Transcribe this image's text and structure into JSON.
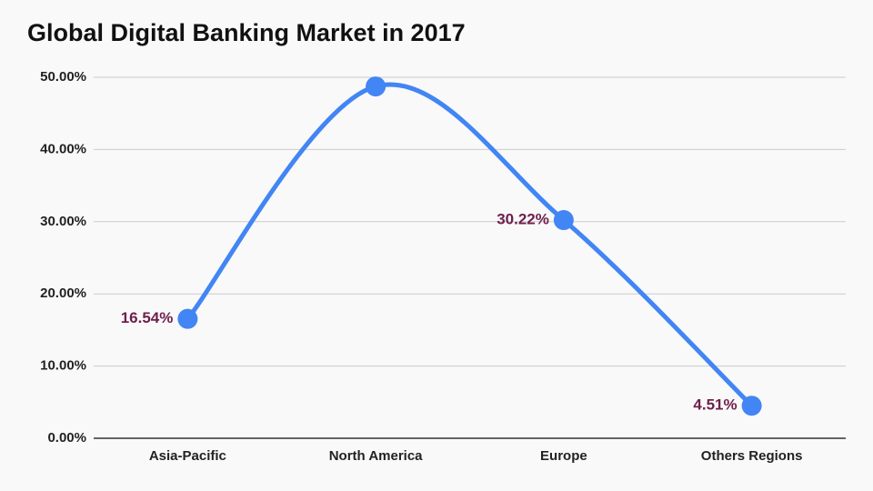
{
  "chart_data": {
    "type": "line",
    "title": "Global Digital Banking Market in 2017",
    "categories": [
      "Asia-Pacific",
      "North America",
      "Europe",
      "Others Regions"
    ],
    "values": [
      16.54,
      48.73,
      30.22,
      4.51
    ],
    "value_labels": [
      "16.54%",
      null,
      "30.22%",
      "4.51%"
    ],
    "color": "#4285f4",
    "ylim": [
      0,
      50
    ],
    "yticks": [
      {
        "value": 0,
        "label": "0.00%"
      },
      {
        "value": 10,
        "label": "10.00%"
      },
      {
        "value": 20,
        "label": "20.00%"
      },
      {
        "value": 30,
        "label": "30.00%"
      },
      {
        "value": 40,
        "label": "40.00%"
      },
      {
        "value": 50,
        "label": "50.00%"
      }
    ],
    "grid": true,
    "smooth": true
  }
}
